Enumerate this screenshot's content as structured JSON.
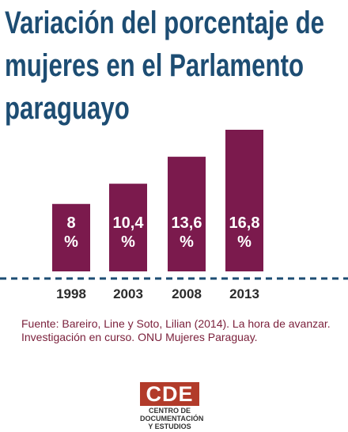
{
  "title": "Variación del porcentaje de mujeres en el Parlamento paraguayo",
  "colors": {
    "title": "#1d4d73",
    "bar": "#7b1a4d",
    "axis_line": "#1d4d73",
    "source_text": "#7a1f3a",
    "logo_red": "#b23b2a"
  },
  "chart_data": {
    "type": "bar",
    "categories": [
      "1998",
      "2003",
      "2008",
      "2013"
    ],
    "values": [
      8,
      10.4,
      13.6,
      16.8
    ],
    "value_labels": [
      "8 %",
      "10,4 %",
      "13,6 %",
      "16,8 %"
    ],
    "unit": "%",
    "title": "Variación del porcentaje de mujeres en el Parlamento paraguayo",
    "xlabel": "",
    "ylabel": "",
    "ylim": [
      0,
      16.8
    ],
    "grid": false,
    "baseline_style": "dashed"
  },
  "source": "Fuente: Bareiro, Line y Soto, Lilian (2014). La hora de avanzar. Investigación en curso. ONU Mujeres Paraguay.",
  "logo": {
    "mark": "CDE",
    "line1": "CENTRO DE",
    "line2": "DOCUMENTACIÓN",
    "line3": "Y ESTUDIOS"
  }
}
